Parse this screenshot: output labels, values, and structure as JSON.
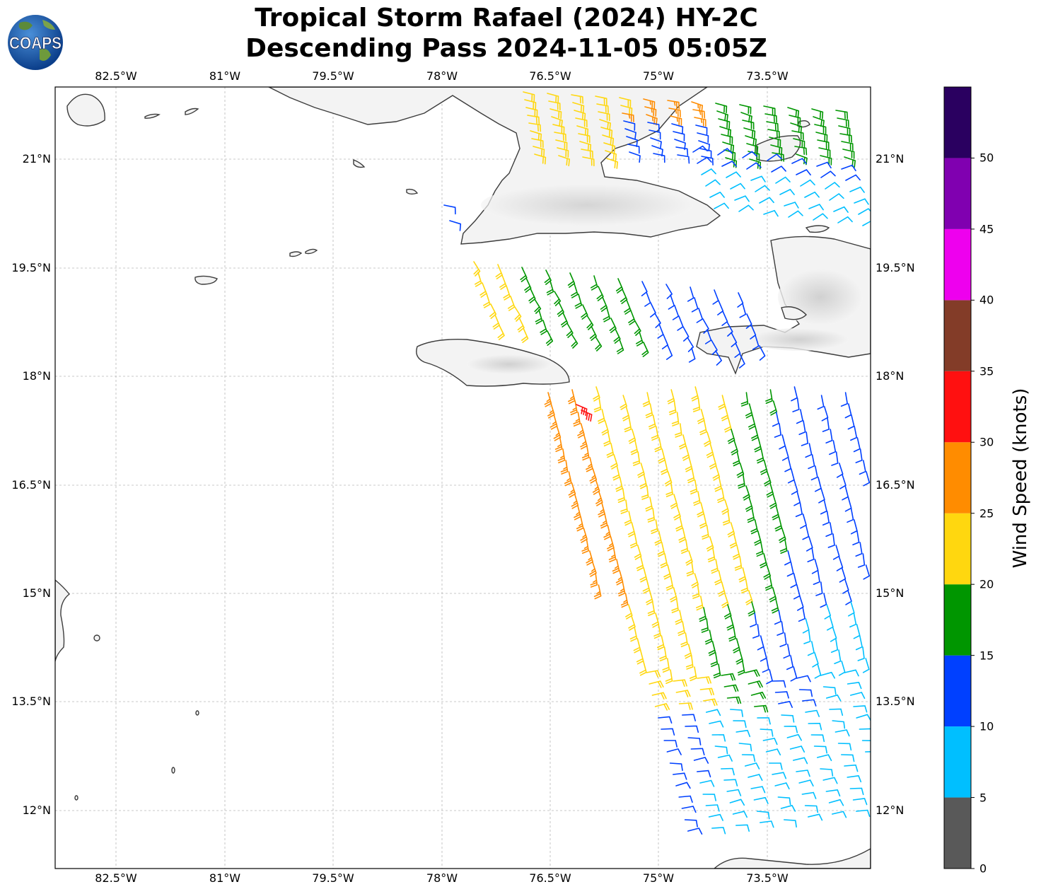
{
  "title": {
    "line1": "Tropical Storm Rafael (2024) HY-2C",
    "line2": "Descending Pass 2024-11-05 05:05Z"
  },
  "logo": {
    "text": "COAPS",
    "icon": "globe-logo-icon"
  },
  "map": {
    "lon_ticks": [
      "82.5°W",
      "81°W",
      "79.5°W",
      "78°W",
      "76.5°W",
      "75°W",
      "73.5°W"
    ],
    "lat_ticks": [
      "21°N",
      "19.5°N",
      "18°N",
      "16.5°N",
      "15°N",
      "13.5°N",
      "12°N"
    ],
    "lon_range": [
      -83.33,
      -72.05
    ],
    "lat_range": [
      11.19,
      22.0
    ],
    "gridlines": true
  },
  "colorbar": {
    "label": "Wind Speed (knots)",
    "ticks": [
      "0",
      "5",
      "10",
      "15",
      "20",
      "25",
      "30",
      "35",
      "40",
      "45",
      "50"
    ],
    "bins": [
      {
        "from": 0,
        "to": 5,
        "color": "#595959"
      },
      {
        "from": 5,
        "to": 10,
        "color": "#00bfff"
      },
      {
        "from": 10,
        "to": 15,
        "color": "#0040ff"
      },
      {
        "from": 15,
        "to": 20,
        "color": "#009600"
      },
      {
        "from": 20,
        "to": 25,
        "color": "#ffd70f"
      },
      {
        "from": 25,
        "to": 30,
        "color": "#ff8c00"
      },
      {
        "from": 30,
        "to": 35,
        "color": "#ff1010"
      },
      {
        "from": 35,
        "to": 40,
        "color": "#833c28"
      },
      {
        "from": 40,
        "to": 45,
        "color": "#ee00ee"
      },
      {
        "from": 45,
        "to": 50,
        "color": "#8000b0"
      },
      {
        "from": 50,
        "to": 55,
        "color": "#2a0060"
      }
    ]
  },
  "wind_field": {
    "description_colors": "wind barbs colored by speed bin",
    "region_speeds_knots": [
      22,
      26,
      18,
      12,
      8,
      32
    ]
  }
}
